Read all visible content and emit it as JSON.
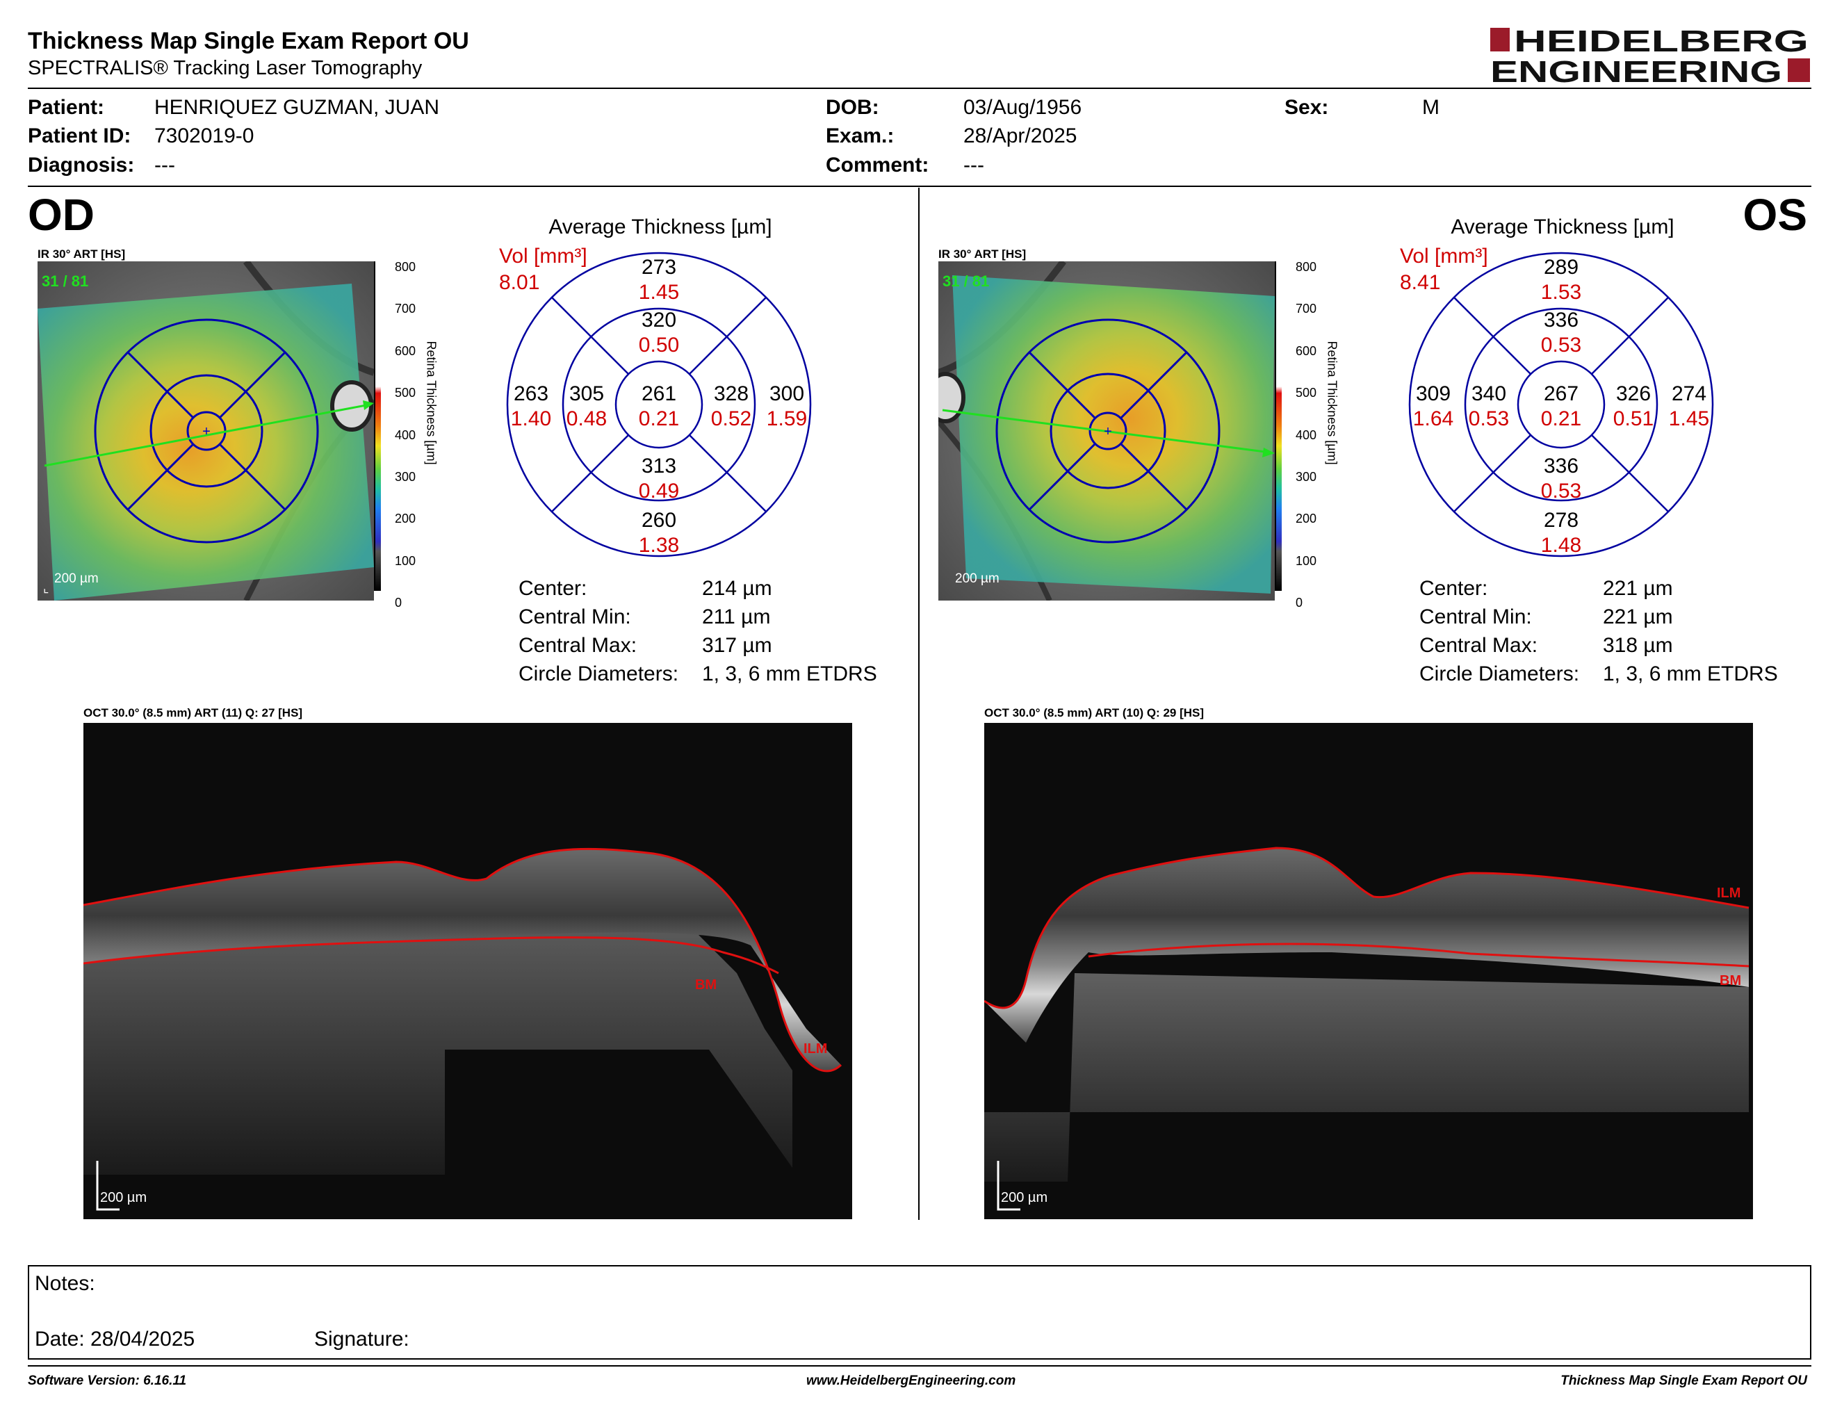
{
  "header": {
    "title": "Thickness Map Single Exam Report OU",
    "subtitle": "SPECTRALIS® Tracking Laser Tomography",
    "logo_line1": "HEIDELBERG",
    "logo_line2": "ENGINEERING"
  },
  "patient": {
    "patient_label": "Patient:",
    "patient_value": "HENRIQUEZ GUZMAN, JUAN",
    "id_label": "Patient ID:",
    "id_value": "7302019-0",
    "diagnosis_label": "Diagnosis:",
    "diagnosis_value": "---",
    "dob_label": "DOB:",
    "dob_value": "03/Aug/1956",
    "exam_label": "Exam.:",
    "exam_value": "28/Apr/2025",
    "comment_label": "Comment:",
    "comment_value": "---",
    "sex_label": "Sex:",
    "sex_value": "M"
  },
  "od": {
    "eye": "OD",
    "ir_label": "IR 30° ART [HS]",
    "frame_count": "31 / 81",
    "scale_text": "200 µm",
    "colorbar_title": "Retina Thickness [µm]",
    "colorbar_ticks": [
      "800",
      "700",
      "600",
      "500",
      "400",
      "300",
      "200",
      "100",
      "0"
    ],
    "grid_title": "Average Thickness [µm]",
    "vol_label": "Vol [mm³]",
    "vol_total": "8.01",
    "sectors": {
      "outer_sup": {
        "t": "273",
        "v": "1.45"
      },
      "inner_sup": {
        "t": "320",
        "v": "0.50"
      },
      "outer_left": {
        "t": "263",
        "v": "1.40"
      },
      "inner_left": {
        "t": "305",
        "v": "0.48"
      },
      "center": {
        "t": "261",
        "v": "0.21"
      },
      "inner_right": {
        "t": "328",
        "v": "0.52"
      },
      "outer_right": {
        "t": "300",
        "v": "1.59"
      },
      "inner_inf": {
        "t": "313",
        "v": "0.49"
      },
      "outer_inf": {
        "t": "260",
        "v": "1.38"
      }
    },
    "stats": [
      {
        "label": "Center:",
        "value": "214 µm"
      },
      {
        "label": "Central Min:",
        "value": "211 µm"
      },
      {
        "label": "Central Max:",
        "value": "317 µm"
      },
      {
        "label": "Circle Diameters:",
        "value": "1, 3, 6 mm ETDRS"
      }
    ],
    "oct_label": "OCT 30.0° (8.5 mm) ART (11) Q: 27 [HS]",
    "oct_ilm": "ILM",
    "oct_bm": "BM",
    "oct_scale": "200 µm"
  },
  "os": {
    "eye": "OS",
    "ir_label": "IR 30° ART [HS]",
    "frame_count": "31 / 81",
    "scale_text": "200 µm",
    "colorbar_title": "Retina Thickness [µm]",
    "colorbar_ticks": [
      "800",
      "700",
      "600",
      "500",
      "400",
      "300",
      "200",
      "100",
      "0"
    ],
    "grid_title": "Average Thickness [µm]",
    "vol_label": "Vol [mm³]",
    "vol_total": "8.41",
    "sectors": {
      "outer_sup": {
        "t": "289",
        "v": "1.53"
      },
      "inner_sup": {
        "t": "336",
        "v": "0.53"
      },
      "outer_left": {
        "t": "309",
        "v": "1.64"
      },
      "inner_left": {
        "t": "340",
        "v": "0.53"
      },
      "center": {
        "t": "267",
        "v": "0.21"
      },
      "inner_right": {
        "t": "326",
        "v": "0.51"
      },
      "outer_right": {
        "t": "274",
        "v": "1.45"
      },
      "inner_inf": {
        "t": "336",
        "v": "0.53"
      },
      "outer_inf": {
        "t": "278",
        "v": "1.48"
      }
    },
    "stats": [
      {
        "label": "Center:",
        "value": "221 µm"
      },
      {
        "label": "Central Min:",
        "value": "221 µm"
      },
      {
        "label": "Central Max:",
        "value": "318 µm"
      },
      {
        "label": "Circle Diameters:",
        "value": "1, 3, 6 mm ETDRS"
      }
    ],
    "oct_label": "OCT 30.0° (8.5 mm) ART (10) Q: 29 [HS]",
    "oct_ilm": "ILM",
    "oct_bm": "BM",
    "oct_scale": "200 µm"
  },
  "notes": {
    "notes_label": "Notes:",
    "date_label": "Date: 28/04/2025",
    "signature_label": "Signature:"
  },
  "footer": {
    "left": "Software Version: 6.16.11",
    "center": "www.HeidelbergEngineering.com",
    "right": "Thickness Map Single Exam Report OU"
  },
  "colors": {
    "brand_red": "#9b1b2a",
    "grid_blue": "#0000a0",
    "value_red": "#d00000",
    "segment_red": "#e01010",
    "scan_green": "#20e020"
  }
}
